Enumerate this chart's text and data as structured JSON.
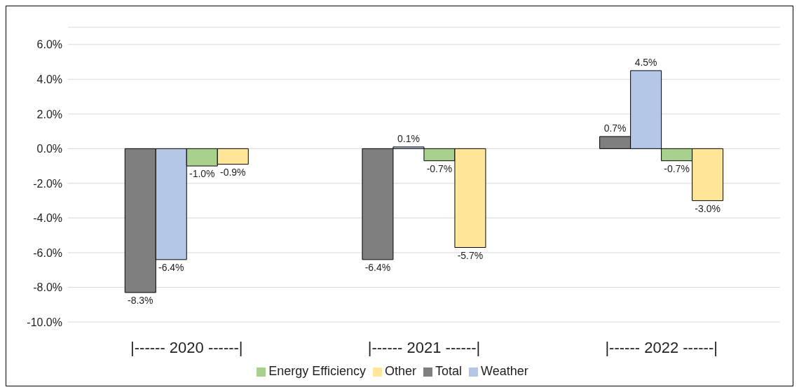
{
  "chart_data": {
    "type": "bar",
    "categories": [
      "|------ 2020 ------|",
      "|------ 2021 ------|",
      "|------ 2022 ------|"
    ],
    "series": [
      {
        "name": "Total",
        "color": "#7f7f7f",
        "values": [
          -8.3,
          -6.4,
          0.7
        ],
        "value_labels": [
          "-8.3%",
          "-6.4%",
          "0.7%"
        ]
      },
      {
        "name": "Weather",
        "color": "#b4c7e7",
        "values": [
          -6.4,
          0.1,
          4.5
        ],
        "value_labels": [
          "-6.4%",
          "0.1%",
          "4.5%"
        ]
      },
      {
        "name": "Energy Efficiency",
        "color": "#a9d18e",
        "values": [
          -1.0,
          -0.7,
          -0.7
        ],
        "value_labels": [
          "-1.0%",
          "-0.7%",
          "-0.7%"
        ]
      },
      {
        "name": "Other",
        "color": "#ffe699",
        "values": [
          -0.9,
          -5.7,
          -3.0
        ],
        "value_labels": [
          "-0.9%",
          "-5.7%",
          "-3.0%"
        ]
      }
    ],
    "ylim": [
      -10,
      7
    ],
    "yticks": [
      {
        "value": -10,
        "label": "-10.0%"
      },
      {
        "value": -8,
        "label": "-8.0%"
      },
      {
        "value": -6,
        "label": "-6.0%"
      },
      {
        "value": -4,
        "label": "-4.0%"
      },
      {
        "value": -2,
        "label": "-2.0%"
      },
      {
        "value": 0,
        "label": "0.0%"
      },
      {
        "value": 2,
        "label": "2.0%"
      },
      {
        "value": 4,
        "label": "4.0%"
      },
      {
        "value": 6,
        "label": "6.0%"
      }
    ],
    "grid": "y",
    "legend": "bottom"
  }
}
